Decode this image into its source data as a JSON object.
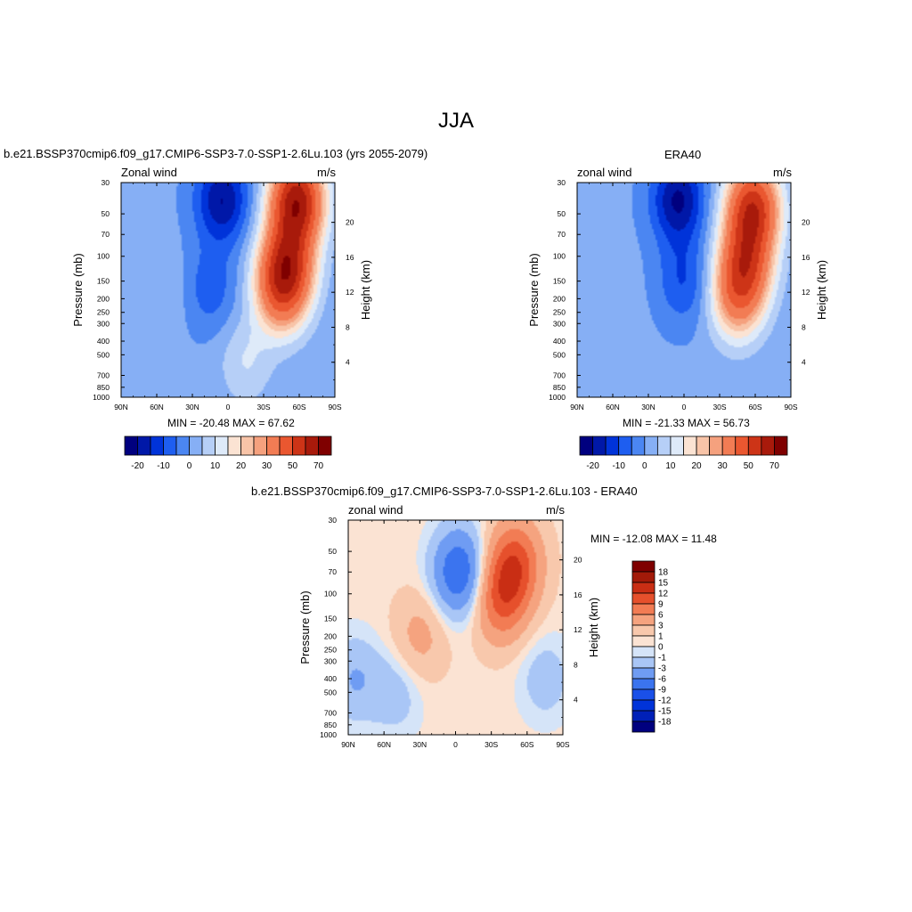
{
  "figure": {
    "season": "JJA"
  },
  "panels": [
    {
      "title": "b.e21.BSSP370cmip6.f09_g17.CMIP6-SSP3-7.0-SSP1-2.6Lu.103 (yrs 2055-2079)",
      "left_label": "Zonal wind",
      "right_label": "m/s",
      "stats": "MIN = -20.48  MAX =  67.62"
    },
    {
      "title": "ERA40",
      "left_label": "zonal wind",
      "right_label": "m/s",
      "stats": "MIN = -21.33  MAX =  56.73"
    },
    {
      "title": "b.e21.BSSP370cmip6.f09_g17.CMIP6-SSP3-7.0-SSP1-2.6Lu.103 - ERA40",
      "left_label": "zonal wind",
      "right_label": "m/s",
      "stats": "MIN = -12.08  MAX =  11.48"
    }
  ],
  "axes": {
    "ylabel_left": "Pressure (mb)",
    "ylabel_right": "Height (km)",
    "x_ticks": [
      "90N",
      "60N",
      "30N",
      "0",
      "30S",
      "60S",
      "90S"
    ],
    "p_ticks": [
      "30",
      "50",
      "70",
      "100",
      "150",
      "200",
      "250",
      "300",
      "400",
      "500",
      "700",
      "850",
      "1000"
    ],
    "h_ticks": [
      "4",
      "8",
      "12",
      "16",
      "20"
    ]
  },
  "chart_data": [
    {
      "type": "heatmap",
      "title": "b.e21.BSSP370cmip6.f09_g17.CMIP6-SSP3-7.0-SSP1-2.6Lu.103 (yrs 2055-2079)",
      "xlabel": "",
      "ylabel": "Pressure (mb)",
      "ylabel_right": "Height (km)",
      "x_ticks": [
        "90N",
        "60N",
        "30N",
        "0",
        "30S",
        "60S",
        "90S"
      ],
      "xlim": [
        "90N",
        "90S"
      ],
      "ylim": [
        1000,
        30
      ],
      "y_scale": "log",
      "min": -20.48,
      "max": 67.62,
      "colorbar_labels": [
        "-20",
        "-10",
        "0",
        "10",
        "20",
        "30",
        "50",
        "70"
      ],
      "features": [
        {
          "lat": 55,
          "p": 180,
          "value": 5
        },
        {
          "lat": 5,
          "p": 40,
          "value": -20
        },
        {
          "lat": 15,
          "p": 170,
          "value": -8
        },
        {
          "lat": -15,
          "p": 560,
          "value": 10
        },
        {
          "lat": -45,
          "p": 180,
          "value": 35
        },
        {
          "lat": -58,
          "p": 40,
          "value": 65
        },
        {
          "lat": -50,
          "p": 110,
          "value": 45
        }
      ]
    },
    {
      "type": "heatmap",
      "title": "ERA40",
      "xlabel": "",
      "ylabel": "Pressure (mb)",
      "ylabel_right": "Height (km)",
      "x_ticks": [
        "90N",
        "60N",
        "30N",
        "0",
        "30S",
        "60S",
        "90S"
      ],
      "xlim": [
        "90N",
        "90S"
      ],
      "ylim": [
        1000,
        30
      ],
      "y_scale": "log",
      "min": -21.33,
      "max": 56.73,
      "colorbar_labels": [
        "-20",
        "-10",
        "0",
        "10",
        "20",
        "30",
        "50",
        "70"
      ],
      "features": [
        {
          "lat": 55,
          "p": 220,
          "value": 2
        },
        {
          "lat": 5,
          "p": 40,
          "value": -21
        },
        {
          "lat": 0,
          "p": 150,
          "value": -10
        },
        {
          "lat": -45,
          "p": 200,
          "value": 30
        },
        {
          "lat": -58,
          "p": 45,
          "value": 55
        },
        {
          "lat": -52,
          "p": 110,
          "value": 40
        }
      ]
    },
    {
      "type": "heatmap",
      "title": "b.e21.BSSP370cmip6.f09_g17.CMIP6-SSP3-7.0-SSP1-2.6Lu.103 - ERA40",
      "xlabel": "",
      "ylabel": "Pressure (mb)",
      "ylabel_right": "Height (km)",
      "x_ticks": [
        "90N",
        "60N",
        "30N",
        "0",
        "30S",
        "60S",
        "90S"
      ],
      "xlim": [
        "90N",
        "90S"
      ],
      "ylim": [
        1000,
        30
      ],
      "y_scale": "log",
      "min": -12.08,
      "max": 11.48,
      "colorbar_labels": [
        "18",
        "15",
        "12",
        "9",
        "6",
        "3",
        "1",
        "0",
        "-1",
        "-3",
        "-6",
        "-9",
        "-12",
        "-15",
        "-18"
      ],
      "features": [
        {
          "lat": -50,
          "p": 60,
          "value": 10
        },
        {
          "lat": -38,
          "p": 110,
          "value": 9
        },
        {
          "lat": -3,
          "p": 70,
          "value": -9
        },
        {
          "lat": 30,
          "p": 200,
          "value": 4
        },
        {
          "lat": 85,
          "p": 400,
          "value": -3
        },
        {
          "lat": 50,
          "p": 500,
          "value": -2
        },
        {
          "lat": -75,
          "p": 400,
          "value": -2
        }
      ]
    }
  ],
  "colors": {
    "wind_scale": [
      "#00007f",
      "#0018a8",
      "#0033d9",
      "#1e5ef0",
      "#4b86f2",
      "#86aff5",
      "#b6cff7",
      "#deeaf9",
      "#fbe3d3",
      "#f8c4a8",
      "#f5a17e",
      "#f27c54",
      "#ea5730",
      "#cd3417",
      "#a81a0b",
      "#7f0000"
    ],
    "diff_scale": [
      "#00007f",
      "#0020b8",
      "#0033d9",
      "#1a50e8",
      "#3b74ef",
      "#6f9cf3",
      "#a9c6f6",
      "#d5e4f8",
      "#fbe3d3",
      "#f8c8ac",
      "#f5a37f",
      "#f27c54",
      "#e6502c",
      "#c92e14",
      "#a31a09",
      "#7f0000"
    ]
  }
}
